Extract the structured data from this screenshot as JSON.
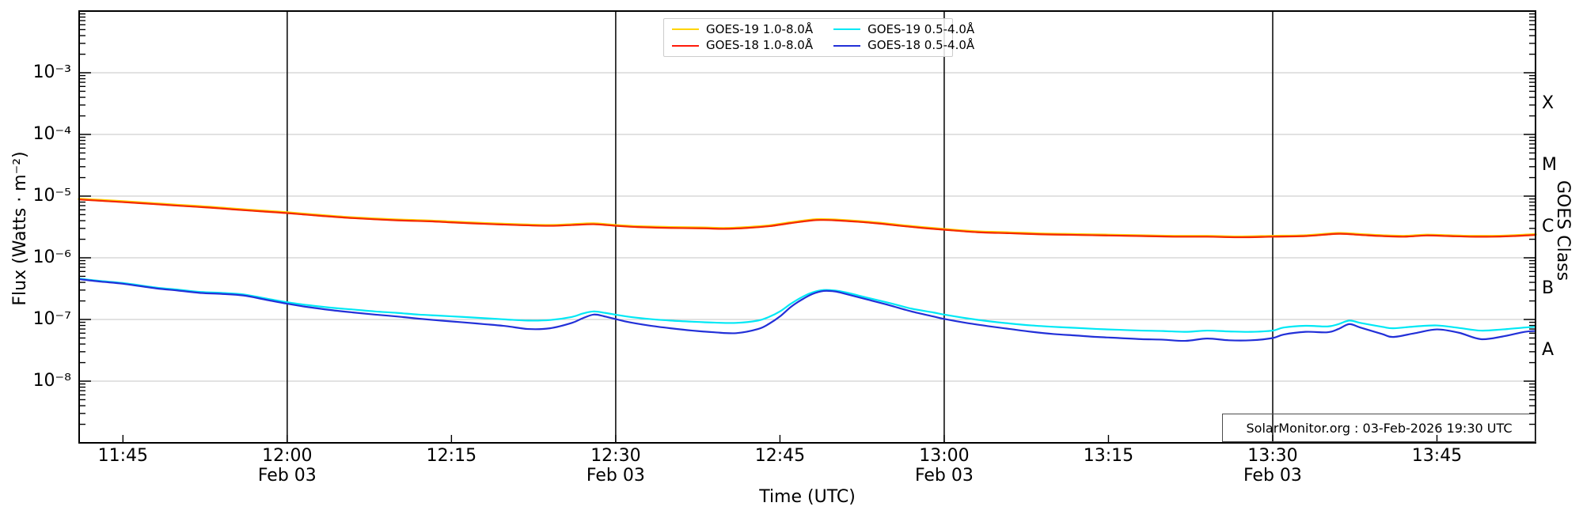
{
  "annotation": "SolarMonitor.org : 03-Feb-2026 19:30 UTC",
  "axes": {
    "x_label": "Time (UTC)",
    "y_left_label": "Flux (Watts · m⁻²)",
    "y_right_label": "GOES Class",
    "x_ticks": [
      {
        "t": 5,
        "label": "11:45",
        "date": ""
      },
      {
        "t": 20,
        "label": "12:00",
        "date": "Feb 03"
      },
      {
        "t": 35,
        "label": "12:15",
        "date": ""
      },
      {
        "t": 50,
        "label": "12:30",
        "date": "Feb 03"
      },
      {
        "t": 65,
        "label": "12:45",
        "date": ""
      },
      {
        "t": 80,
        "label": "13:00",
        "date": "Feb 03"
      },
      {
        "t": 95,
        "label": "13:15",
        "date": ""
      },
      {
        "t": 110,
        "label": "13:30",
        "date": "Feb 03"
      },
      {
        "t": 125,
        "label": "13:45",
        "date": ""
      }
    ],
    "y_ticks": [
      {
        "exp": -3,
        "label": "10⁻³"
      },
      {
        "exp": -4,
        "label": "10⁻⁴"
      },
      {
        "exp": -5,
        "label": "10⁻⁵"
      },
      {
        "exp": -6,
        "label": "10⁻⁶"
      },
      {
        "exp": -7,
        "label": "10⁻⁷"
      },
      {
        "exp": -8,
        "label": "10⁻⁸"
      }
    ],
    "goes_classes": [
      {
        "label": "X",
        "center_exp": -3.5
      },
      {
        "label": "M",
        "center_exp": -4.5
      },
      {
        "label": "C",
        "center_exp": -5.5
      },
      {
        "label": "B",
        "center_exp": -6.5
      },
      {
        "label": "A",
        "center_exp": -7.5
      }
    ]
  },
  "legend": {
    "items": [
      {
        "label": "GOES-19 1.0-8.0Å",
        "color": "#ffd400"
      },
      {
        "label": "GOES-18 1.0-8.0Å",
        "color": "#ff1a0a"
      },
      {
        "label": "GOES-19 0.5-4.0Å",
        "color": "#00e8f5"
      },
      {
        "label": "GOES-18 0.5-4.0Å",
        "color": "#2230d8"
      }
    ]
  },
  "colors": {
    "grid": "#c6c6c6",
    "day_line": "#111111",
    "frame": "#000000",
    "background": "#ffffff"
  },
  "chart_data": {
    "type": "line",
    "title": "",
    "xlabel": "Time (UTC)",
    "ylabel": "Flux (Watts · m⁻²)",
    "x_axis": {
      "unit": "minutes since 11:40 UTC on 03-Feb-2026",
      "range": [
        1,
        134
      ],
      "major_tick_interval_min": 15,
      "day_boundary_lines_t": [
        20,
        50,
        80,
        110
      ]
    },
    "y_axis": {
      "scale": "log",
      "range_exp": [
        -9,
        -2
      ],
      "gridline_exps": [
        -3,
        -4,
        -5,
        -6,
        -7,
        -8
      ]
    },
    "legend_position": "top-center",
    "series": [
      {
        "name": "GOES-19 1.0-8.0Å",
        "color": "#ffd400",
        "width": 3.2,
        "note": "coincides almost exactly with GOES-18 1.0-8.0Å (hidden beneath red)",
        "points": [
          [
            1,
            8.97e-06
          ],
          [
            3,
            8.56e-06
          ],
          [
            5,
            8.16e-06
          ],
          [
            8,
            7.54e-06
          ],
          [
            10,
            7.14e-06
          ],
          [
            13,
            6.63e-06
          ],
          [
            15,
            6.22e-06
          ],
          [
            18,
            5.71e-06
          ],
          [
            20,
            5.4e-06
          ],
          [
            23,
            4.89e-06
          ],
          [
            26,
            4.48e-06
          ],
          [
            30,
            4.13e-06
          ],
          [
            33,
            3.97e-06
          ],
          [
            35,
            3.82e-06
          ],
          [
            38,
            3.62e-06
          ],
          [
            41,
            3.46e-06
          ],
          [
            44,
            3.36e-06
          ],
          [
            46,
            3.46e-06
          ],
          [
            48,
            3.57e-06
          ],
          [
            50,
            3.36e-06
          ],
          [
            52,
            3.21e-06
          ],
          [
            55,
            3.11e-06
          ],
          [
            58,
            3.06e-06
          ],
          [
            60,
            3e-06
          ],
          [
            62,
            3.11e-06
          ],
          [
            64,
            3.31e-06
          ],
          [
            66,
            3.72e-06
          ],
          [
            68,
            4.13e-06
          ],
          [
            69,
            4.18e-06
          ],
          [
            70,
            4.13e-06
          ],
          [
            72,
            3.92e-06
          ],
          [
            74,
            3.67e-06
          ],
          [
            76,
            3.36e-06
          ],
          [
            78,
            3.11e-06
          ],
          [
            80,
            2.9e-06
          ],
          [
            83,
            2.65e-06
          ],
          [
            86,
            2.55e-06
          ],
          [
            89,
            2.44e-06
          ],
          [
            92,
            2.39e-06
          ],
          [
            95,
            2.34e-06
          ],
          [
            98,
            2.29e-06
          ],
          [
            101,
            2.24e-06
          ],
          [
            104,
            2.24e-06
          ],
          [
            107,
            2.19e-06
          ],
          [
            110,
            2.24e-06
          ],
          [
            113,
            2.29e-06
          ],
          [
            116,
            2.49e-06
          ],
          [
            118,
            2.39e-06
          ],
          [
            120,
            2.29e-06
          ],
          [
            122,
            2.24e-06
          ],
          [
            124,
            2.34e-06
          ],
          [
            126,
            2.29e-06
          ],
          [
            128,
            2.24e-06
          ],
          [
            130,
            2.24e-06
          ],
          [
            132,
            2.29e-06
          ],
          [
            134,
            2.39e-06
          ]
        ]
      },
      {
        "name": "GOES-18 1.0-8.0Å",
        "color": "#f42600",
        "width": 2.2,
        "points": [
          [
            1,
            8.8e-06
          ],
          [
            3,
            8.4e-06
          ],
          [
            5,
            8e-06
          ],
          [
            8,
            7.4e-06
          ],
          [
            10,
            7e-06
          ],
          [
            13,
            6.5e-06
          ],
          [
            15,
            6.1e-06
          ],
          [
            18,
            5.6e-06
          ],
          [
            20,
            5.3e-06
          ],
          [
            23,
            4.8e-06
          ],
          [
            26,
            4.4e-06
          ],
          [
            30,
            4.05e-06
          ],
          [
            33,
            3.9e-06
          ],
          [
            35,
            3.75e-06
          ],
          [
            38,
            3.55e-06
          ],
          [
            41,
            3.4e-06
          ],
          [
            44,
            3.3e-06
          ],
          [
            46,
            3.4e-06
          ],
          [
            48,
            3.5e-06
          ],
          [
            50,
            3.3e-06
          ],
          [
            52,
            3.15e-06
          ],
          [
            55,
            3.05e-06
          ],
          [
            58,
            3e-06
          ],
          [
            60,
            2.95e-06
          ],
          [
            62,
            3.05e-06
          ],
          [
            64,
            3.25e-06
          ],
          [
            66,
            3.65e-06
          ],
          [
            68,
            4.05e-06
          ],
          [
            69,
            4.1e-06
          ],
          [
            70,
            4.05e-06
          ],
          [
            72,
            3.85e-06
          ],
          [
            74,
            3.6e-06
          ],
          [
            76,
            3.3e-06
          ],
          [
            78,
            3.05e-06
          ],
          [
            80,
            2.85e-06
          ],
          [
            83,
            2.6e-06
          ],
          [
            86,
            2.5e-06
          ],
          [
            89,
            2.4e-06
          ],
          [
            92,
            2.35e-06
          ],
          [
            95,
            2.3e-06
          ],
          [
            98,
            2.25e-06
          ],
          [
            101,
            2.2e-06
          ],
          [
            104,
            2.2e-06
          ],
          [
            107,
            2.15e-06
          ],
          [
            110,
            2.2e-06
          ],
          [
            113,
            2.25e-06
          ],
          [
            116,
            2.45e-06
          ],
          [
            118,
            2.35e-06
          ],
          [
            120,
            2.25e-06
          ],
          [
            122,
            2.2e-06
          ],
          [
            124,
            2.3e-06
          ],
          [
            126,
            2.25e-06
          ],
          [
            128,
            2.2e-06
          ],
          [
            130,
            2.2e-06
          ],
          [
            132,
            2.25e-06
          ],
          [
            134,
            2.35e-06
          ]
        ]
      },
      {
        "name": "GOES-19 0.5-4.0Å",
        "color": "#00e8f5",
        "width": 2.2,
        "points": [
          [
            1,
            4.6e-07
          ],
          [
            3,
            4.2e-07
          ],
          [
            5,
            3.9e-07
          ],
          [
            8,
            3.3e-07
          ],
          [
            10,
            3.05e-07
          ],
          [
            12,
            2.8e-07
          ],
          [
            14,
            2.7e-07
          ],
          [
            16,
            2.55e-07
          ],
          [
            18,
            2.2e-07
          ],
          [
            20,
            1.9e-07
          ],
          [
            22,
            1.7e-07
          ],
          [
            24,
            1.55e-07
          ],
          [
            26,
            1.45e-07
          ],
          [
            28,
            1.35e-07
          ],
          [
            30,
            1.28e-07
          ],
          [
            32,
            1.2e-07
          ],
          [
            34,
            1.15e-07
          ],
          [
            36,
            1.1e-07
          ],
          [
            38,
            1.05e-07
          ],
          [
            40,
            1e-07
          ],
          [
            42,
            9.6e-08
          ],
          [
            44,
            9.8e-08
          ],
          [
            46,
            1.1e-07
          ],
          [
            47,
            1.25e-07
          ],
          [
            48,
            1.35e-07
          ],
          [
            49,
            1.28e-07
          ],
          [
            51,
            1.12e-07
          ],
          [
            53,
            1.02e-07
          ],
          [
            55,
            9.6e-08
          ],
          [
            57,
            9.2e-08
          ],
          [
            59,
            8.9e-08
          ],
          [
            61,
            8.8e-08
          ],
          [
            63,
            9.6e-08
          ],
          [
            64,
            1.1e-07
          ],
          [
            65,
            1.35e-07
          ],
          [
            66,
            1.8e-07
          ],
          [
            67,
            2.3e-07
          ],
          [
            68,
            2.75e-07
          ],
          [
            69,
            3e-07
          ],
          [
            70,
            2.95e-07
          ],
          [
            71,
            2.75e-07
          ],
          [
            73,
            2.25e-07
          ],
          [
            75,
            1.85e-07
          ],
          [
            77,
            1.5e-07
          ],
          [
            79,
            1.3e-07
          ],
          [
            80,
            1.2e-07
          ],
          [
            82,
            1.05e-07
          ],
          [
            84,
            9.4e-08
          ],
          [
            86,
            8.6e-08
          ],
          [
            88,
            8e-08
          ],
          [
            90,
            7.6e-08
          ],
          [
            92,
            7.3e-08
          ],
          [
            94,
            7e-08
          ],
          [
            96,
            6.8e-08
          ],
          [
            98,
            6.6e-08
          ],
          [
            100,
            6.5e-08
          ],
          [
            102,
            6.3e-08
          ],
          [
            104,
            6.6e-08
          ],
          [
            106,
            6.4e-08
          ],
          [
            108,
            6.3e-08
          ],
          [
            110,
            6.6e-08
          ],
          [
            111,
            7.4e-08
          ],
          [
            113,
            7.9e-08
          ],
          [
            115,
            7.7e-08
          ],
          [
            116,
            8.4e-08
          ],
          [
            117,
            9.6e-08
          ],
          [
            118,
            8.8e-08
          ],
          [
            120,
            7.6e-08
          ],
          [
            121,
            7.2e-08
          ],
          [
            123,
            7.7e-08
          ],
          [
            125,
            8e-08
          ],
          [
            127,
            7.3e-08
          ],
          [
            129,
            6.6e-08
          ],
          [
            131,
            6.9e-08
          ],
          [
            133,
            7.4e-08
          ],
          [
            134,
            7.6e-08
          ]
        ]
      },
      {
        "name": "GOES-18 0.5-4.0Å",
        "color": "#2230d8",
        "width": 2.2,
        "points": [
          [
            1,
            4.5e-07
          ],
          [
            3,
            4.1e-07
          ],
          [
            5,
            3.8e-07
          ],
          [
            8,
            3.2e-07
          ],
          [
            10,
            2.95e-07
          ],
          [
            12,
            2.7e-07
          ],
          [
            14,
            2.6e-07
          ],
          [
            16,
            2.45e-07
          ],
          [
            18,
            2.1e-07
          ],
          [
            20,
            1.8e-07
          ],
          [
            22,
            1.58e-07
          ],
          [
            24,
            1.42e-07
          ],
          [
            26,
            1.3e-07
          ],
          [
            28,
            1.2e-07
          ],
          [
            30,
            1.12e-07
          ],
          [
            32,
            1.03e-07
          ],
          [
            34,
            9.6e-08
          ],
          [
            36,
            9e-08
          ],
          [
            38,
            8.4e-08
          ],
          [
            40,
            7.8e-08
          ],
          [
            42,
            7e-08
          ],
          [
            44,
            7.2e-08
          ],
          [
            46,
            8.8e-08
          ],
          [
            47,
            1.05e-07
          ],
          [
            48,
            1.2e-07
          ],
          [
            49,
            1.12e-07
          ],
          [
            51,
            9.2e-08
          ],
          [
            53,
            8e-08
          ],
          [
            55,
            7.2e-08
          ],
          [
            57,
            6.6e-08
          ],
          [
            59,
            6.2e-08
          ],
          [
            61,
            6e-08
          ],
          [
            63,
            7e-08
          ],
          [
            64,
            8.5e-08
          ],
          [
            65,
            1.12e-07
          ],
          [
            66,
            1.6e-07
          ],
          [
            67,
            2.1e-07
          ],
          [
            68,
            2.6e-07
          ],
          [
            69,
            2.9e-07
          ],
          [
            70,
            2.85e-07
          ],
          [
            71,
            2.6e-07
          ],
          [
            73,
            2.1e-07
          ],
          [
            75,
            1.7e-07
          ],
          [
            77,
            1.35e-07
          ],
          [
            79,
            1.12e-07
          ],
          [
            80,
            1.02e-07
          ],
          [
            82,
            8.8e-08
          ],
          [
            84,
            7.8e-08
          ],
          [
            86,
            7e-08
          ],
          [
            88,
            6.3e-08
          ],
          [
            90,
            5.8e-08
          ],
          [
            92,
            5.5e-08
          ],
          [
            94,
            5.2e-08
          ],
          [
            96,
            5e-08
          ],
          [
            98,
            4.8e-08
          ],
          [
            100,
            4.7e-08
          ],
          [
            102,
            4.5e-08
          ],
          [
            104,
            4.9e-08
          ],
          [
            106,
            4.6e-08
          ],
          [
            108,
            4.6e-08
          ],
          [
            110,
            5e-08
          ],
          [
            111,
            5.7e-08
          ],
          [
            113,
            6.3e-08
          ],
          [
            115,
            6.2e-08
          ],
          [
            116,
            7e-08
          ],
          [
            117,
            8.4e-08
          ],
          [
            118,
            7.4e-08
          ],
          [
            120,
            5.8e-08
          ],
          [
            121,
            5.2e-08
          ],
          [
            123,
            6e-08
          ],
          [
            125,
            6.9e-08
          ],
          [
            127,
            6.1e-08
          ],
          [
            129,
            4.8e-08
          ],
          [
            131,
            5.3e-08
          ],
          [
            133,
            6.3e-08
          ],
          [
            134,
            6.5e-08
          ]
        ]
      }
    ]
  }
}
